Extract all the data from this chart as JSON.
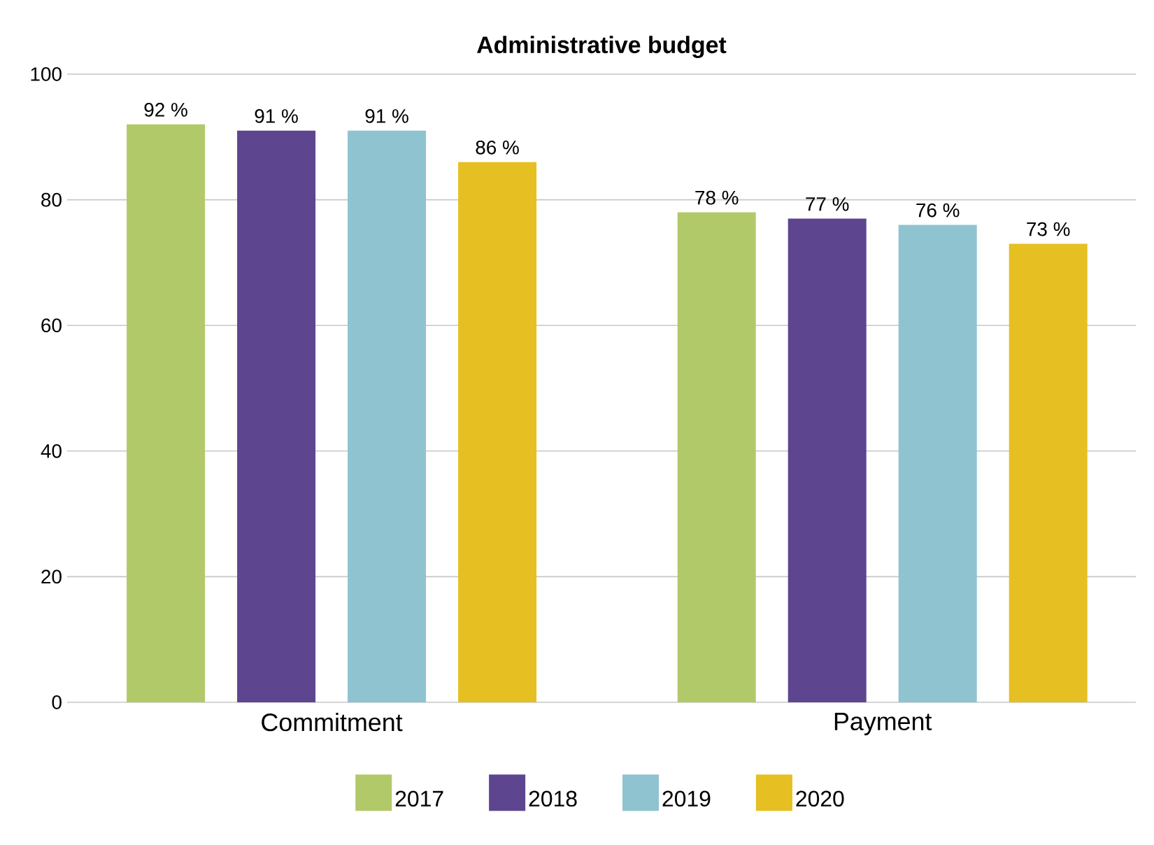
{
  "chart_data": {
    "type": "bar",
    "title": "Administrative budget",
    "categories": [
      "Commitment",
      "Payment"
    ],
    "series": [
      {
        "name": "2017",
        "color": "#b2c96a",
        "values": [
          92,
          78
        ],
        "value_labels": [
          "92 %",
          "78 %"
        ]
      },
      {
        "name": "2018",
        "color": "#5e458f",
        "values": [
          91,
          77
        ],
        "value_labels": [
          "91 %",
          "77 %"
        ]
      },
      {
        "name": "2019",
        "color": "#8fc3d0",
        "values": [
          91,
          76
        ],
        "value_labels": [
          "91 %",
          "76 %"
        ]
      },
      {
        "name": "2020",
        "color": "#e6bf22",
        "values": [
          86,
          73
        ],
        "value_labels": [
          "86 %",
          "73 %"
        ]
      }
    ],
    "ylim": [
      0,
      100
    ],
    "yticks": [
      0,
      20,
      40,
      60,
      80,
      100
    ],
    "grid": "y",
    "legend": "bottom"
  }
}
